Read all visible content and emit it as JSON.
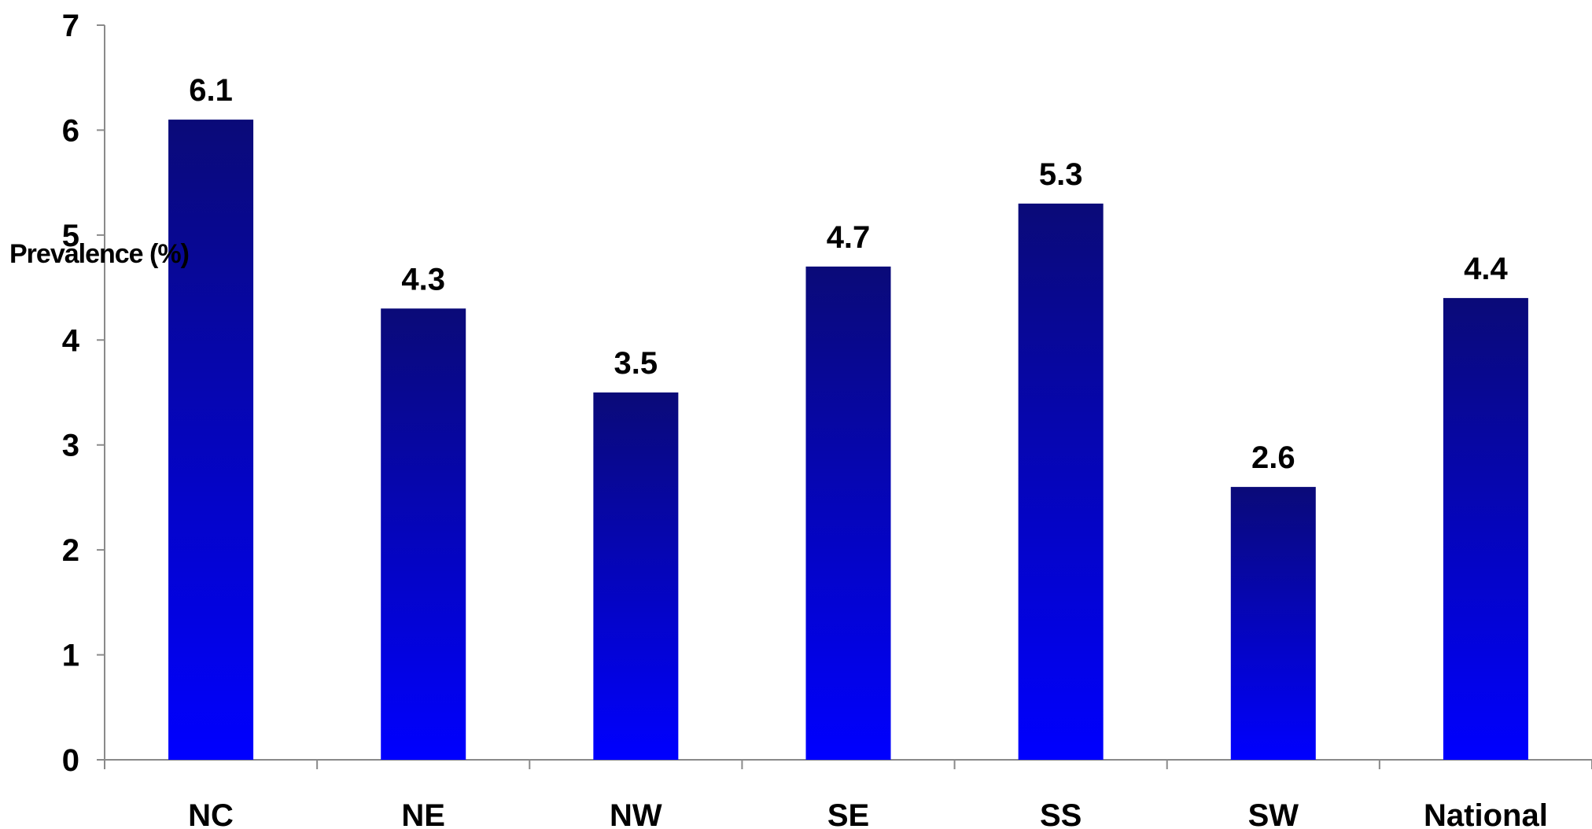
{
  "chart_data": {
    "type": "bar",
    "categories": [
      "NC",
      "NE",
      "NW",
      "SE",
      "SS",
      "SW",
      "National"
    ],
    "values": [
      6.1,
      4.3,
      3.5,
      4.7,
      5.3,
      2.6,
      4.4
    ],
    "data_labels": [
      "6.1",
      "4.3",
      "3.5",
      "4.7",
      "5.3",
      "2.6",
      "4.4"
    ],
    "ylabel": "Prevalence (%)",
    "xlabel": "",
    "ylim": [
      0,
      7
    ],
    "yticks": [
      0,
      1,
      2,
      3,
      4,
      5,
      6,
      7
    ],
    "grid": false,
    "legend": "none",
    "colors": {
      "bar_top": "#0a0a78",
      "bar_bottom": "#0000ff",
      "axis": "#8a8a8a",
      "text": "#000000"
    }
  }
}
